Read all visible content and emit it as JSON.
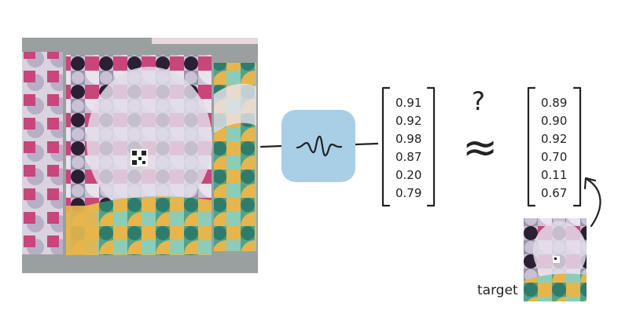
{
  "diagram": {
    "input_vector": [
      "0.91",
      "0.92",
      "0.98",
      "0.87",
      "0.20",
      "0.79"
    ],
    "target_vector": [
      "0.89",
      "0.90",
      "0.92",
      "0.70",
      "0.11",
      "0.67"
    ],
    "question_mark": "?",
    "approx_symbol": "≈",
    "target_label": "target",
    "encoder_icon": "waveform-icon",
    "colors": {
      "encoder_box": "#a9cfe6",
      "ink": "#222222",
      "wall": "#9aa0a0",
      "poster_pink": "#c9457a",
      "poster_lavender": "#c9c2d4",
      "poster_dark": "#2b1f33",
      "poster_teal": "#4fa389",
      "poster_yellow": "#e7b54a"
    }
  }
}
